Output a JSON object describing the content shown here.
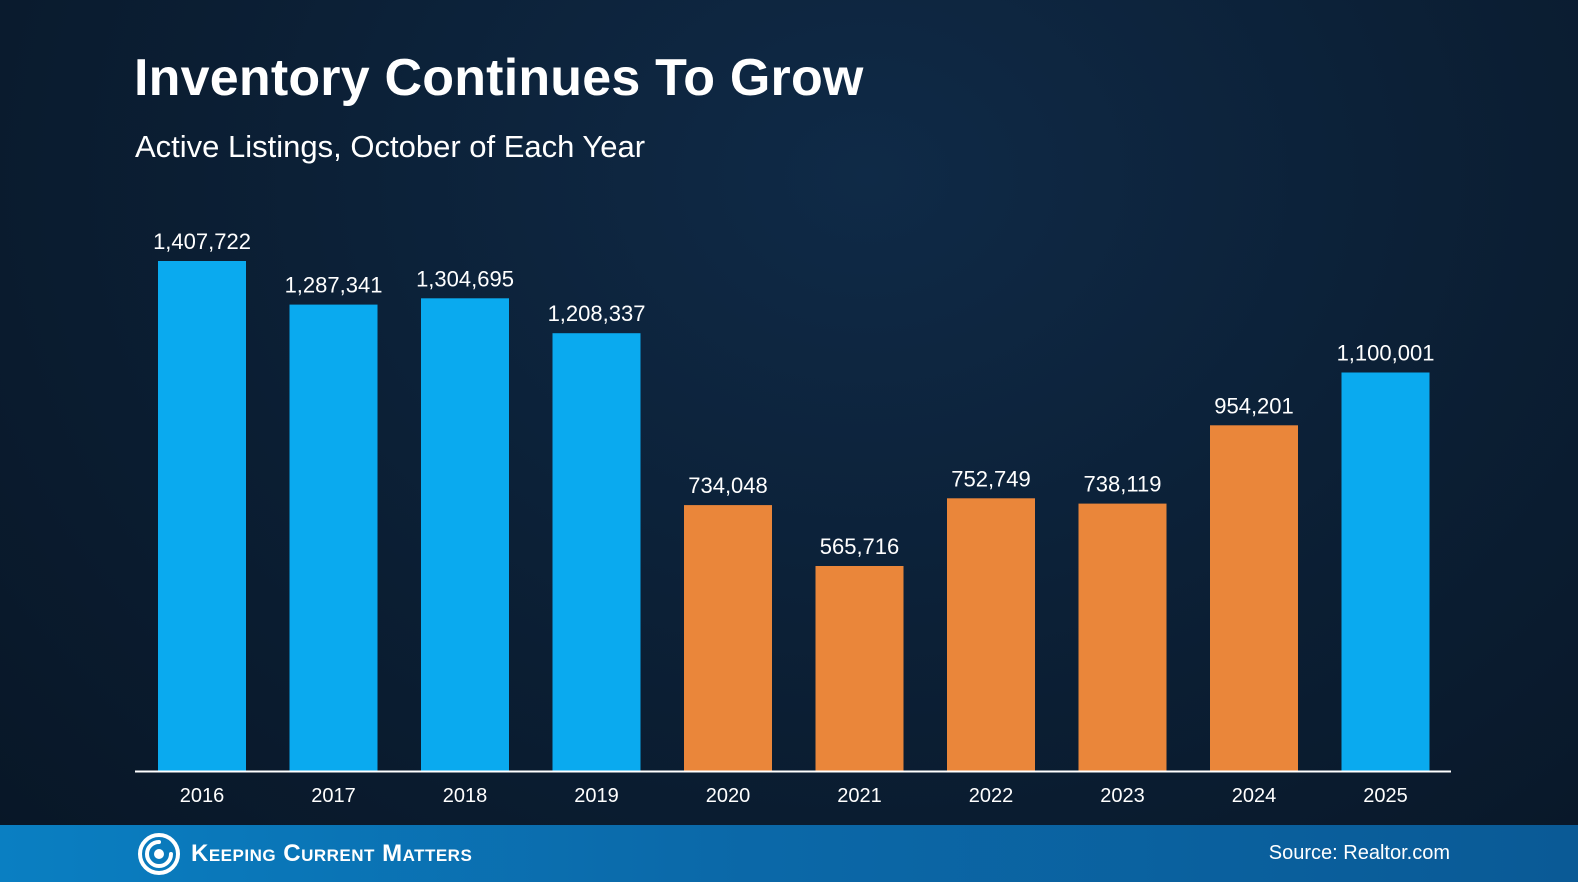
{
  "title": "Inventory Continues To Grow",
  "subtitle": "Active Listings, October of Each Year",
  "footer": {
    "brand": "Keeping Current Matters",
    "source": "Source: Realtor.com"
  },
  "colors": {
    "blue_bar": "#0aaaef",
    "orange_bar": "#ea863a",
    "background": "#0b1e33",
    "footer": "#0a6fb0"
  },
  "icons": {
    "logo": "kcm-swirl-logo-icon"
  },
  "chart_data": {
    "type": "bar",
    "title": "Inventory Continues To Grow",
    "subtitle": "Active Listings, October of Each Year",
    "categories": [
      "2016",
      "2017",
      "2018",
      "2019",
      "2020",
      "2021",
      "2022",
      "2023",
      "2024",
      "2025"
    ],
    "values": [
      1407722,
      1287341,
      1304695,
      1208337,
      734048,
      565716,
      752749,
      738119,
      954201,
      1100001
    ],
    "value_labels": [
      "1,407,722",
      "1,287,341",
      "1,304,695",
      "1,208,337",
      "734,048",
      "565,716",
      "752,749",
      "738,119",
      "954,201",
      "1,100,001"
    ],
    "bar_colors": [
      "#0aaaef",
      "#0aaaef",
      "#0aaaef",
      "#0aaaef",
      "#ea863a",
      "#ea863a",
      "#ea863a",
      "#ea863a",
      "#ea863a",
      "#0aaaef"
    ],
    "xlabel": "",
    "ylabel": "",
    "ylim": [
      0,
      1407722
    ],
    "grid": false,
    "legend": "none"
  }
}
